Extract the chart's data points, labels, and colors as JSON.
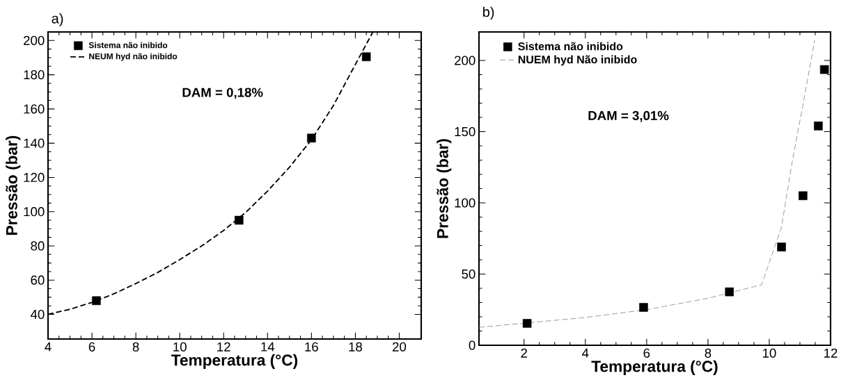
{
  "chart_data": [
    {
      "type": "scatter",
      "xlabel": "Temperatura (°C)",
      "ylabel": "Pressão (bar)",
      "annotations": [
        "a)",
        "DAM = 0,18%"
      ],
      "xlim": [
        4,
        21
      ],
      "ylim": [
        25.6,
        205
      ],
      "xticks": [
        4,
        6,
        8,
        10,
        12,
        14,
        16,
        18,
        20
      ],
      "yticks": [
        40,
        60,
        80,
        100,
        120,
        140,
        160,
        180,
        200
      ],
      "legend": "top left",
      "grid": false,
      "series": [
        {
          "name": "Sistema não inibido",
          "marker": "square",
          "color": "#000000",
          "x": [
            6.2,
            12.7,
            16,
            18.5
          ],
          "values": [
            48,
            95,
            143,
            190.5
          ]
        },
        {
          "name": "NEUM hyd não inibido",
          "type": "line",
          "marker": "none",
          "line_style": "dashed",
          "color": "#000000",
          "x": [
            4,
            5,
            6,
            7,
            8,
            9,
            10,
            11,
            12,
            13,
            14,
            15,
            16,
            17,
            18,
            18.8
          ],
          "values": [
            40,
            43,
            47,
            52,
            58,
            64.5,
            72,
            80,
            89,
            99.5,
            112,
            126,
            142,
            162,
            186,
            205
          ]
        }
      ]
    },
    {
      "type": "scatter",
      "xlabel": "Temperatura (°C)",
      "ylabel": "Pressão (bar)",
      "annotations": [
        "b)",
        "DAM = 3,01%"
      ],
      "xlim": [
        0.53,
        12
      ],
      "ylim": [
        0,
        220
      ],
      "xticks": [
        2,
        4,
        6,
        8,
        10,
        12
      ],
      "yticks": [
        0,
        50,
        100,
        150,
        200
      ],
      "legend": "top left",
      "grid": false,
      "series": [
        {
          "name": "Sistema não inibido",
          "marker": "square",
          "color": "#000000",
          "x": [
            2.1,
            5.9,
            8.7,
            10.4,
            11.1,
            11.6,
            11.8
          ],
          "values": [
            15.4,
            26.6,
            37.5,
            69,
            105,
            154,
            193.6
          ]
        },
        {
          "name": "NUEM hyd Não inibido",
          "type": "line",
          "marker": "none",
          "line_style": "dashed",
          "color": "#808080",
          "x": [
            0.53,
            2,
            4,
            6,
            8,
            9.75,
            10.4,
            10.75,
            11.1,
            11.48
          ],
          "values": [
            12.6,
            15.5,
            19.5,
            25,
            33,
            42.5,
            83,
            129,
            169,
            214
          ]
        }
      ]
    }
  ]
}
